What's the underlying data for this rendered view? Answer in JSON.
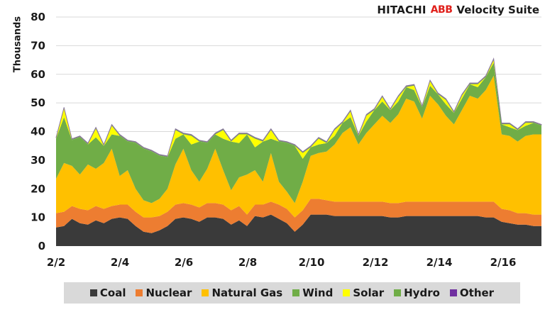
{
  "brand": {
    "company": "HITACHI",
    "logo": "ABB",
    "product": "Velocity Suite"
  },
  "chart_data": {
    "type": "area",
    "stacked": true,
    "title": "",
    "xlabel": "",
    "ylabel": "Thousands",
    "ylim": [
      0,
      80
    ],
    "yticks": [
      0,
      10,
      20,
      30,
      40,
      50,
      60,
      70,
      80
    ],
    "xticks": [
      "2/2",
      "2/4",
      "2/6",
      "2/8",
      "2/10",
      "2/12",
      "2/14",
      "2/16"
    ],
    "grid": true,
    "legend_position": "bottom",
    "x_start": "2/2 00:00",
    "x_step_hours": 6,
    "series": [
      {
        "name": "Coal",
        "color": "#3a3a3a",
        "values": [
          6.5,
          7,
          9.5,
          8,
          7.5,
          9,
          8,
          9.5,
          10,
          9.5,
          7,
          5,
          4.5,
          5.5,
          7,
          9.5,
          10,
          9.5,
          8.5,
          10,
          10,
          9.5,
          7.5,
          9,
          7,
          10.5,
          10,
          11,
          9.5,
          8,
          5,
          7.5,
          11,
          11,
          11,
          10.5,
          10.5,
          10.5,
          10.5,
          10.5,
          10.5,
          10.5,
          10,
          10,
          10.5,
          10.5,
          10.5,
          10.5,
          10.5,
          10.5,
          10.5,
          10.5,
          10.5,
          10.5,
          10,
          10,
          8.5,
          8,
          7.5,
          7.5,
          7,
          7
        ]
      },
      {
        "name": "Nuclear",
        "color": "#ed7d31",
        "values": [
          5,
          5,
          4.5,
          5,
          5,
          5,
          5,
          4.5,
          4.5,
          5,
          5,
          5,
          5.5,
          5,
          5,
          5,
          5,
          5,
          5,
          5,
          5,
          5,
          5,
          5,
          4,
          4,
          4.5,
          4.5,
          5,
          5,
          5,
          5,
          5.5,
          5.5,
          5,
          5,
          5,
          5,
          5,
          5,
          5,
          5,
          5,
          5,
          5,
          5,
          5,
          5,
          5,
          5,
          5,
          5,
          5,
          5,
          5.5,
          5.5,
          4.5,
          4.5,
          4,
          4,
          4,
          4
        ]
      },
      {
        "name": "Natural Gas",
        "color": "#ffc000",
        "values": [
          12,
          17,
          14,
          12,
          16,
          13,
          16,
          20,
          10,
          12,
          8,
          6,
          5,
          6,
          8,
          14,
          19,
          12,
          9,
          12,
          19,
          12,
          7,
          10,
          14,
          12,
          8,
          17,
          8,
          6,
          5,
          10,
          15,
          16,
          17,
          20,
          24,
          26,
          20,
          24,
          27,
          30,
          28,
          31,
          36,
          35,
          29,
          37,
          34,
          30,
          27,
          32,
          37,
          36,
          39,
          44,
          26,
          26,
          25,
          27,
          28,
          28
        ]
      },
      {
        "name": "Wind",
        "color": "#70ad47",
        "values": [
          14,
          16,
          9,
          13,
          7,
          11,
          6,
          5,
          14,
          10,
          16,
          18,
          18,
          15,
          11,
          9,
          5,
          9,
          14,
          9,
          5,
          11,
          17,
          12,
          14,
          8,
          14,
          5,
          14,
          17,
          20,
          8,
          3,
          3,
          3,
          3,
          3.5,
          3.5,
          3,
          4,
          5,
          5,
          4.5,
          4.5,
          4,
          4,
          4,
          3.5,
          3.5,
          4,
          4,
          4,
          4,
          4,
          4.5,
          4.5,
          3.5,
          3,
          4,
          3.5,
          4,
          3
        ]
      },
      {
        "name": "Solar",
        "color": "#ffff00",
        "values": [
          0,
          3,
          0,
          0,
          0,
          3,
          0,
          3,
          0,
          0,
          0,
          0,
          0,
          0,
          0,
          3,
          0,
          3,
          0,
          0,
          0,
          3,
          0,
          3,
          0,
          3,
          0,
          3,
          0,
          0,
          0,
          2,
          0,
          2,
          0,
          2,
          0,
          2,
          0,
          2,
          0,
          1.5,
          0,
          1.5,
          0,
          1.5,
          0,
          1.5,
          0,
          1.5,
          0,
          1,
          0,
          1,
          0,
          1,
          0,
          1,
          0,
          1,
          0,
          0
        ]
      },
      {
        "name": "Hydro",
        "color": "#70ad47",
        "values": [
          0.3,
          0.3,
          0.3,
          0.3,
          0.3,
          0.3,
          0.3,
          0.3,
          0.3,
          0.3,
          0.3,
          0.3,
          0.3,
          0.3,
          0.3,
          0.3,
          0.3,
          0.3,
          0.3,
          0.3,
          0.3,
          0.3,
          0.3,
          0.3,
          0.3,
          0.3,
          0.3,
          0.3,
          0.3,
          0.3,
          0.3,
          0.3,
          0.3,
          0.3,
          0.3,
          0.3,
          0.3,
          0.3,
          0.3,
          0.3,
          0.3,
          0.3,
          0.3,
          0.3,
          0.3,
          0.3,
          0.3,
          0.3,
          0.3,
          0.3,
          0.3,
          0.3,
          0.3,
          0.3,
          0.3,
          0.3,
          0.3,
          0.3,
          0.3,
          0.3,
          0.3,
          0.3
        ]
      },
      {
        "name": "Other",
        "color": "#7030a0",
        "values": [
          0.2,
          0.2,
          0.2,
          0.2,
          0.2,
          0.2,
          0.2,
          0.2,
          0.2,
          0.2,
          0.2,
          0.2,
          0.2,
          0.2,
          0.2,
          0.2,
          0.2,
          0.2,
          0.2,
          0.2,
          0.2,
          0.2,
          0.2,
          0.2,
          0.2,
          0.2,
          0.2,
          0.2,
          0.2,
          0.2,
          0.2,
          0.2,
          0.2,
          0.2,
          0.2,
          0.2,
          0.2,
          0.2,
          0.2,
          0.2,
          0.2,
          0.2,
          0.2,
          0.2,
          0.2,
          0.2,
          0.2,
          0.2,
          0.2,
          0.2,
          0.2,
          0.2,
          0.2,
          0.2,
          0.2,
          0.2,
          0.2,
          0.2,
          0.2,
          0.2,
          0.2,
          0.2
        ]
      }
    ]
  },
  "legend": {
    "items": [
      {
        "label": "Coal",
        "color": "#3a3a3a"
      },
      {
        "label": "Nuclear",
        "color": "#ed7d31"
      },
      {
        "label": "Natural Gas",
        "color": "#ffc000"
      },
      {
        "label": "Wind",
        "color": "#70ad47"
      },
      {
        "label": "Solar",
        "color": "#ffff00"
      },
      {
        "label": "Hydro",
        "color": "#70ad47"
      },
      {
        "label": "Other",
        "color": "#7030a0"
      }
    ]
  }
}
